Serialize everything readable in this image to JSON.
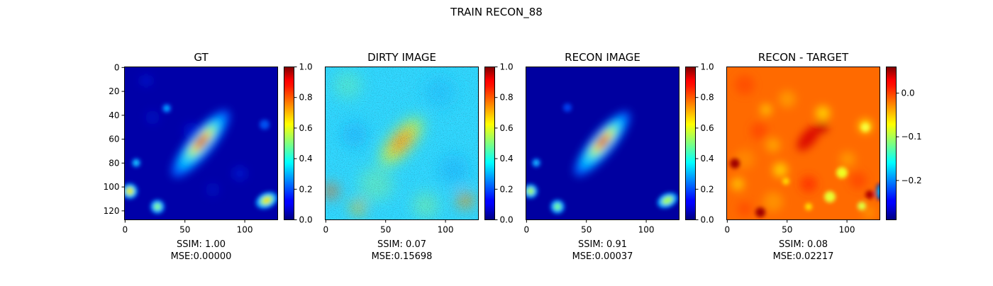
{
  "figure": {
    "title": "TRAIN RECON_88"
  },
  "chart_data": [
    {
      "type": "heatmap",
      "title": "GT",
      "xticks": [
        0,
        50,
        100
      ],
      "yticks": [
        0,
        20,
        40,
        60,
        80,
        100,
        120
      ],
      "image_size": [
        128,
        128
      ],
      "colormap": "jet",
      "colorbar": {
        "vmin": 0.0,
        "vmax": 1.0,
        "ticks": [
          "0.0",
          "0.2",
          "0.4",
          "0.6",
          "0.8",
          "1.0"
        ],
        "tick_values": [
          0.0,
          0.2,
          0.4,
          0.6,
          0.8,
          1.0
        ]
      },
      "metrics": {
        "ssim": "SSIM: 1.00",
        "mse": "MSE:0.00000"
      }
    },
    {
      "type": "heatmap",
      "title": "DIRTY IMAGE",
      "xticks": [
        0,
        50,
        100
      ],
      "image_size": [
        128,
        128
      ],
      "colormap": "jet",
      "colorbar": {
        "vmin": 0.0,
        "vmax": 1.0,
        "ticks": [
          "0.0",
          "0.2",
          "0.4",
          "0.6",
          "0.8",
          "1.0"
        ],
        "tick_values": [
          0.0,
          0.2,
          0.4,
          0.6,
          0.8,
          1.0
        ]
      },
      "metrics": {
        "ssim": "SSIM: 0.07",
        "mse": "MSE:0.15698"
      }
    },
    {
      "type": "heatmap",
      "title": "RECON IMAGE",
      "xticks": [
        0,
        50,
        100
      ],
      "image_size": [
        128,
        128
      ],
      "colormap": "jet",
      "colorbar": {
        "vmin": 0.0,
        "vmax": 1.0,
        "ticks": [
          "0.0",
          "0.2",
          "0.4",
          "0.6",
          "0.8",
          "1.0"
        ],
        "tick_values": [
          0.0,
          0.2,
          0.4,
          0.6,
          0.8,
          1.0
        ]
      },
      "metrics": {
        "ssim": "SSIM: 0.91",
        "mse": "MSE:0.00037"
      }
    },
    {
      "type": "heatmap",
      "title": "RECON - TARGET",
      "xticks": [
        0,
        50,
        100
      ],
      "image_size": [
        128,
        128
      ],
      "colormap": "jet",
      "colorbar": {
        "vmin": -0.29,
        "vmax": 0.06,
        "ticks": [
          "0.0",
          "−0.1",
          "−0.2"
        ],
        "tick_values": [
          0.0,
          -0.1,
          -0.2
        ]
      },
      "metrics": {
        "ssim": "SSIM: 0.08",
        "mse": "MSE:0.02217"
      }
    }
  ]
}
